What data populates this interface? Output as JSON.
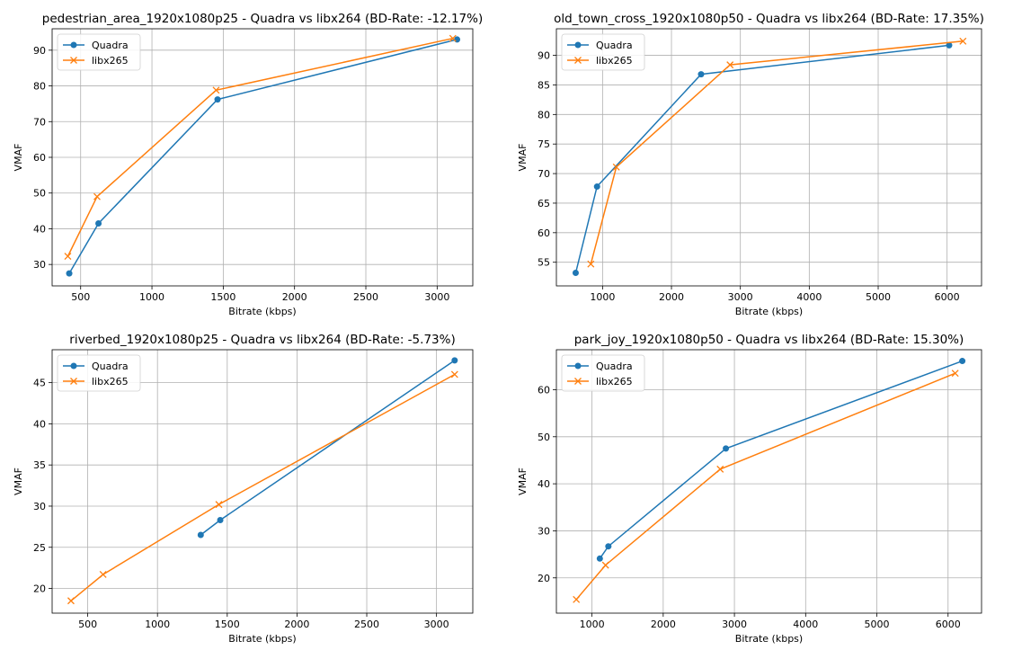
{
  "chart_data": [
    {
      "type": "line",
      "title": "pedestrian_area_1920x1080p25 - Quadra vs libx264 (BD-Rate: -12.17%)",
      "xlabel": "Bitrate (kbps)",
      "ylabel": "VMAF",
      "xlim": [
        300,
        3250
      ],
      "ylim": [
        24,
        96
      ],
      "xticks": [
        500,
        1000,
        1500,
        2000,
        2500,
        3000
      ],
      "yticks": [
        30,
        40,
        50,
        60,
        70,
        80,
        90
      ],
      "grid": true,
      "legend": "top-left",
      "series": [
        {
          "name": "Quadra",
          "color": "#1f77b4",
          "marker": "circle",
          "x": [
            420,
            625,
            1460,
            3140
          ],
          "y": [
            27.5,
            41.5,
            76.2,
            93.0
          ]
        },
        {
          "name": "libx265",
          "color": "#ff7f0e",
          "marker": "x",
          "x": [
            410,
            615,
            1450,
            3110
          ],
          "y": [
            32.3,
            49.0,
            78.8,
            93.3
          ]
        }
      ]
    },
    {
      "type": "line",
      "title": "old_town_cross_1920x1080p50 - Quadra vs libx264 (BD-Rate: 17.35%)",
      "xlabel": "Bitrate (kbps)",
      "ylabel": "VMAF",
      "xlim": [
        330,
        6500
      ],
      "ylim": [
        51.0,
        94.5
      ],
      "xticks": [
        1000,
        2000,
        3000,
        4000,
        5000,
        6000
      ],
      "yticks": [
        55,
        60,
        65,
        70,
        75,
        80,
        85,
        90
      ],
      "grid": true,
      "legend": "top-left",
      "series": [
        {
          "name": "Quadra",
          "color": "#1f77b4",
          "marker": "circle",
          "x": [
            610,
            920,
            2430,
            6030
          ],
          "y": [
            53.2,
            67.8,
            86.8,
            91.7
          ]
        },
        {
          "name": "libx265",
          "color": "#ff7f0e",
          "marker": "x",
          "x": [
            830,
            1200,
            2850,
            6230
          ],
          "y": [
            54.7,
            71.1,
            88.4,
            92.4
          ]
        }
      ]
    },
    {
      "type": "line",
      "title": "riverbed_1920x1080p25 - Quadra vs libx264 (BD-Rate: -5.73%)",
      "xlabel": "Bitrate (kbps)",
      "ylabel": "VMAF",
      "xlim": [
        245,
        3260
      ],
      "ylim": [
        17.0,
        49.0
      ],
      "xticks": [
        500,
        1000,
        1500,
        2000,
        2500,
        3000
      ],
      "yticks": [
        20,
        25,
        30,
        35,
        40,
        45
      ],
      "grid": true,
      "legend": "top-left",
      "series": [
        {
          "name": "Quadra",
          "color": "#1f77b4",
          "marker": "circle",
          "x": [
            1310,
            1450,
            3130
          ],
          "y": [
            26.5,
            28.3,
            47.7
          ]
        },
        {
          "name": "libx265",
          "color": "#ff7f0e",
          "marker": "x",
          "x": [
            380,
            610,
            1440,
            3130
          ],
          "y": [
            18.5,
            21.7,
            30.2,
            46.0
          ]
        }
      ]
    },
    {
      "type": "line",
      "title": "park_joy_1920x1080p50 - Quadra vs libx264 (BD-Rate: 15.30%)",
      "xlabel": "Bitrate (kbps)",
      "ylabel": "VMAF",
      "xlim": [
        500,
        6470
      ],
      "ylim": [
        12.5,
        68.5
      ],
      "xticks": [
        1000,
        2000,
        3000,
        4000,
        5000,
        6000
      ],
      "yticks": [
        20,
        30,
        40,
        50,
        60
      ],
      "grid": true,
      "legend": "top-left",
      "series": [
        {
          "name": "Quadra",
          "color": "#1f77b4",
          "marker": "circle",
          "x": [
            1110,
            1230,
            2880,
            6200
          ],
          "y": [
            24.1,
            26.7,
            47.5,
            66.1
          ]
        },
        {
          "name": "libx265",
          "color": "#ff7f0e",
          "marker": "x",
          "x": [
            780,
            1190,
            2800,
            6100
          ],
          "y": [
            15.4,
            22.7,
            43.1,
            63.5
          ]
        }
      ]
    }
  ]
}
